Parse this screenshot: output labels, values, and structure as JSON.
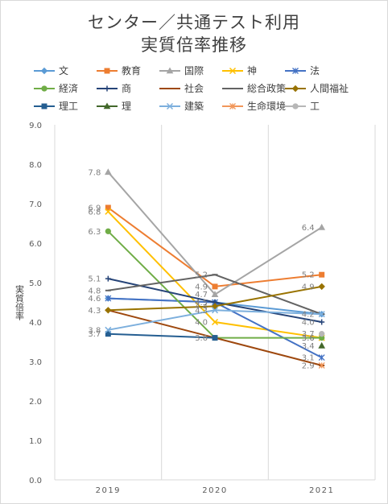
{
  "chart_data": {
    "type": "line",
    "title": "センター／共通テスト利用",
    "subtitle": "実質倍率推移",
    "ylabel": "実質倍率",
    "xlabel": "",
    "ylim": [
      0,
      9
    ],
    "yticks": [
      "0.0",
      "1.0",
      "2.0",
      "3.0",
      "4.0",
      "5.0",
      "6.0",
      "7.0",
      "8.0",
      "9.0"
    ],
    "categories": [
      "2019",
      "2020",
      "2021"
    ],
    "legend_position": "top",
    "grid": "vertical",
    "series": [
      {
        "name": "文",
        "values": [
          4.6,
          4.5,
          4.2
        ],
        "color": "#5B9BD5",
        "marker": "diamond",
        "labels": [
          "4.6",
          "4.5",
          "4.2"
        ]
      },
      {
        "name": "教育",
        "values": [
          6.9,
          4.9,
          5.2
        ],
        "color": "#ED7D31",
        "marker": "square",
        "labels": [
          "6.9",
          "4.9",
          "5.2"
        ]
      },
      {
        "name": "国際",
        "values": [
          7.8,
          4.7,
          6.4
        ],
        "color": "#A5A5A5",
        "marker": "triangle",
        "labels": [
          "7.8",
          "4.7",
          "6.4"
        ]
      },
      {
        "name": "神",
        "values": [
          6.8,
          4.0,
          3.6
        ],
        "color": "#FFC000",
        "marker": "x",
        "labels": [
          "6.8",
          "4.0",
          "3.6"
        ]
      },
      {
        "name": "法",
        "values": [
          4.6,
          4.5,
          3.1
        ],
        "color": "#4472C4",
        "marker": "star",
        "labels": [
          "",
          "",
          "3.1"
        ]
      },
      {
        "name": "経済",
        "values": [
          6.3,
          3.6,
          3.6
        ],
        "color": "#70AD47",
        "marker": "circle",
        "labels": [
          "6.3",
          "",
          "3.6"
        ]
      },
      {
        "name": "商",
        "values": [
          5.1,
          4.5,
          4.0
        ],
        "color": "#264478",
        "marker": "plus",
        "labels": [
          "5.1",
          "",
          "4.0"
        ]
      },
      {
        "name": "社会",
        "values": [
          4.3,
          3.6,
          2.9
        ],
        "color": "#9E480E",
        "marker": "dash",
        "labels": [
          "4.3",
          "",
          "2.9"
        ]
      },
      {
        "name": "総合政策",
        "values": [
          4.8,
          5.2,
          4.2
        ],
        "color": "#636363",
        "marker": "dash",
        "labels": [
          "4.8",
          "5.2",
          ""
        ]
      },
      {
        "name": "人間福祉",
        "values": [
          4.3,
          4.4,
          4.9
        ],
        "color": "#997300",
        "marker": "diamond",
        "labels": [
          "",
          "4.4",
          "4.9"
        ]
      },
      {
        "name": "理工",
        "values": [
          3.7,
          3.6,
          null
        ],
        "color": "#255E91",
        "marker": "square",
        "labels": [
          "3.7",
          "3.6",
          ""
        ]
      },
      {
        "name": "理",
        "values": [
          null,
          null,
          3.4
        ],
        "color": "#43682B",
        "marker": "triangle",
        "labels": [
          "",
          "",
          "3.4"
        ]
      },
      {
        "name": "建築",
        "values": [
          3.8,
          4.3,
          4.2
        ],
        "color": "#7CAFDD",
        "marker": "x",
        "labels": [
          "3.8",
          "4.3",
          ""
        ]
      },
      {
        "name": "生命環境",
        "values": [
          null,
          null,
          2.9
        ],
        "color": "#F1975A",
        "marker": "star",
        "labels": [
          "",
          "",
          ""
        ]
      },
      {
        "name": "工",
        "values": [
          null,
          null,
          3.7
        ],
        "color": "#B7B7B7",
        "marker": "circle",
        "labels": [
          "",
          "",
          "3.7"
        ]
      }
    ]
  }
}
